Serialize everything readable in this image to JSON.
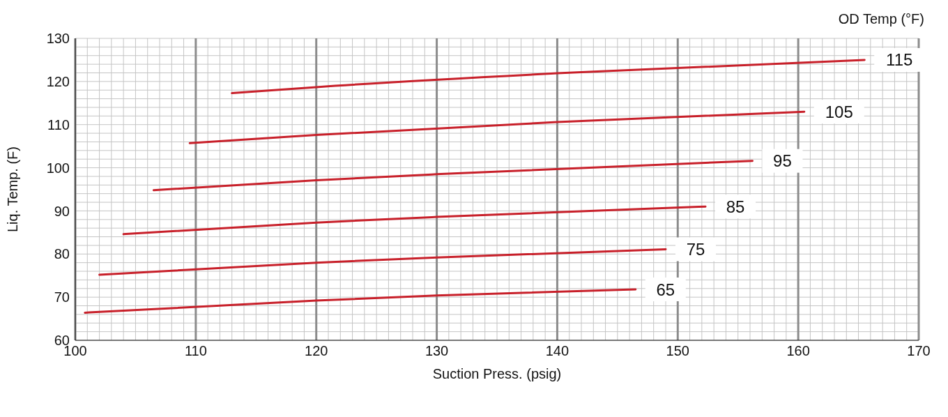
{
  "chart_data": {
    "type": "line",
    "xlabel": "Suction Press. (psig)",
    "ylabel": "Liq. Temp. (F)",
    "legend_title": "OD Temp (°F)",
    "xlim": [
      100,
      170
    ],
    "xticks": [
      100,
      110,
      120,
      130,
      140,
      150,
      160,
      170
    ],
    "ylim": [
      60,
      130
    ],
    "yticks": [
      60,
      70,
      80,
      90,
      100,
      110,
      120,
      130
    ],
    "grid": true,
    "legend": false,
    "marker": "none",
    "line_style": "solid",
    "series": [
      {
        "name": "65",
        "color": "#c8202a",
        "x": [
          100.8,
          120,
          130,
          146.5
        ],
        "values": [
          66.4,
          69.2,
          70.4,
          71.8
        ]
      },
      {
        "name": "75",
        "color": "#c8202a",
        "x": [
          102,
          120,
          130,
          149
        ],
        "values": [
          75.2,
          78.0,
          79.2,
          81.1
        ]
      },
      {
        "name": "85",
        "color": "#c8202a",
        "x": [
          104,
          120,
          130,
          152.3
        ],
        "values": [
          84.6,
          87.3,
          88.6,
          91.0
        ]
      },
      {
        "name": "95",
        "color": "#c8202a",
        "x": [
          106.5,
          120,
          130,
          156.2
        ],
        "values": [
          94.8,
          97.1,
          98.5,
          101.6
        ]
      },
      {
        "name": "105",
        "color": "#c8202a",
        "x": [
          109.5,
          120,
          140,
          160.5
        ],
        "values": [
          105.7,
          107.6,
          110.6,
          113.0
        ]
      },
      {
        "name": "115",
        "color": "#c8202a",
        "x": [
          113,
          120,
          140,
          165.5
        ],
        "values": [
          117.3,
          118.7,
          121.9,
          125.0
        ]
      }
    ]
  }
}
